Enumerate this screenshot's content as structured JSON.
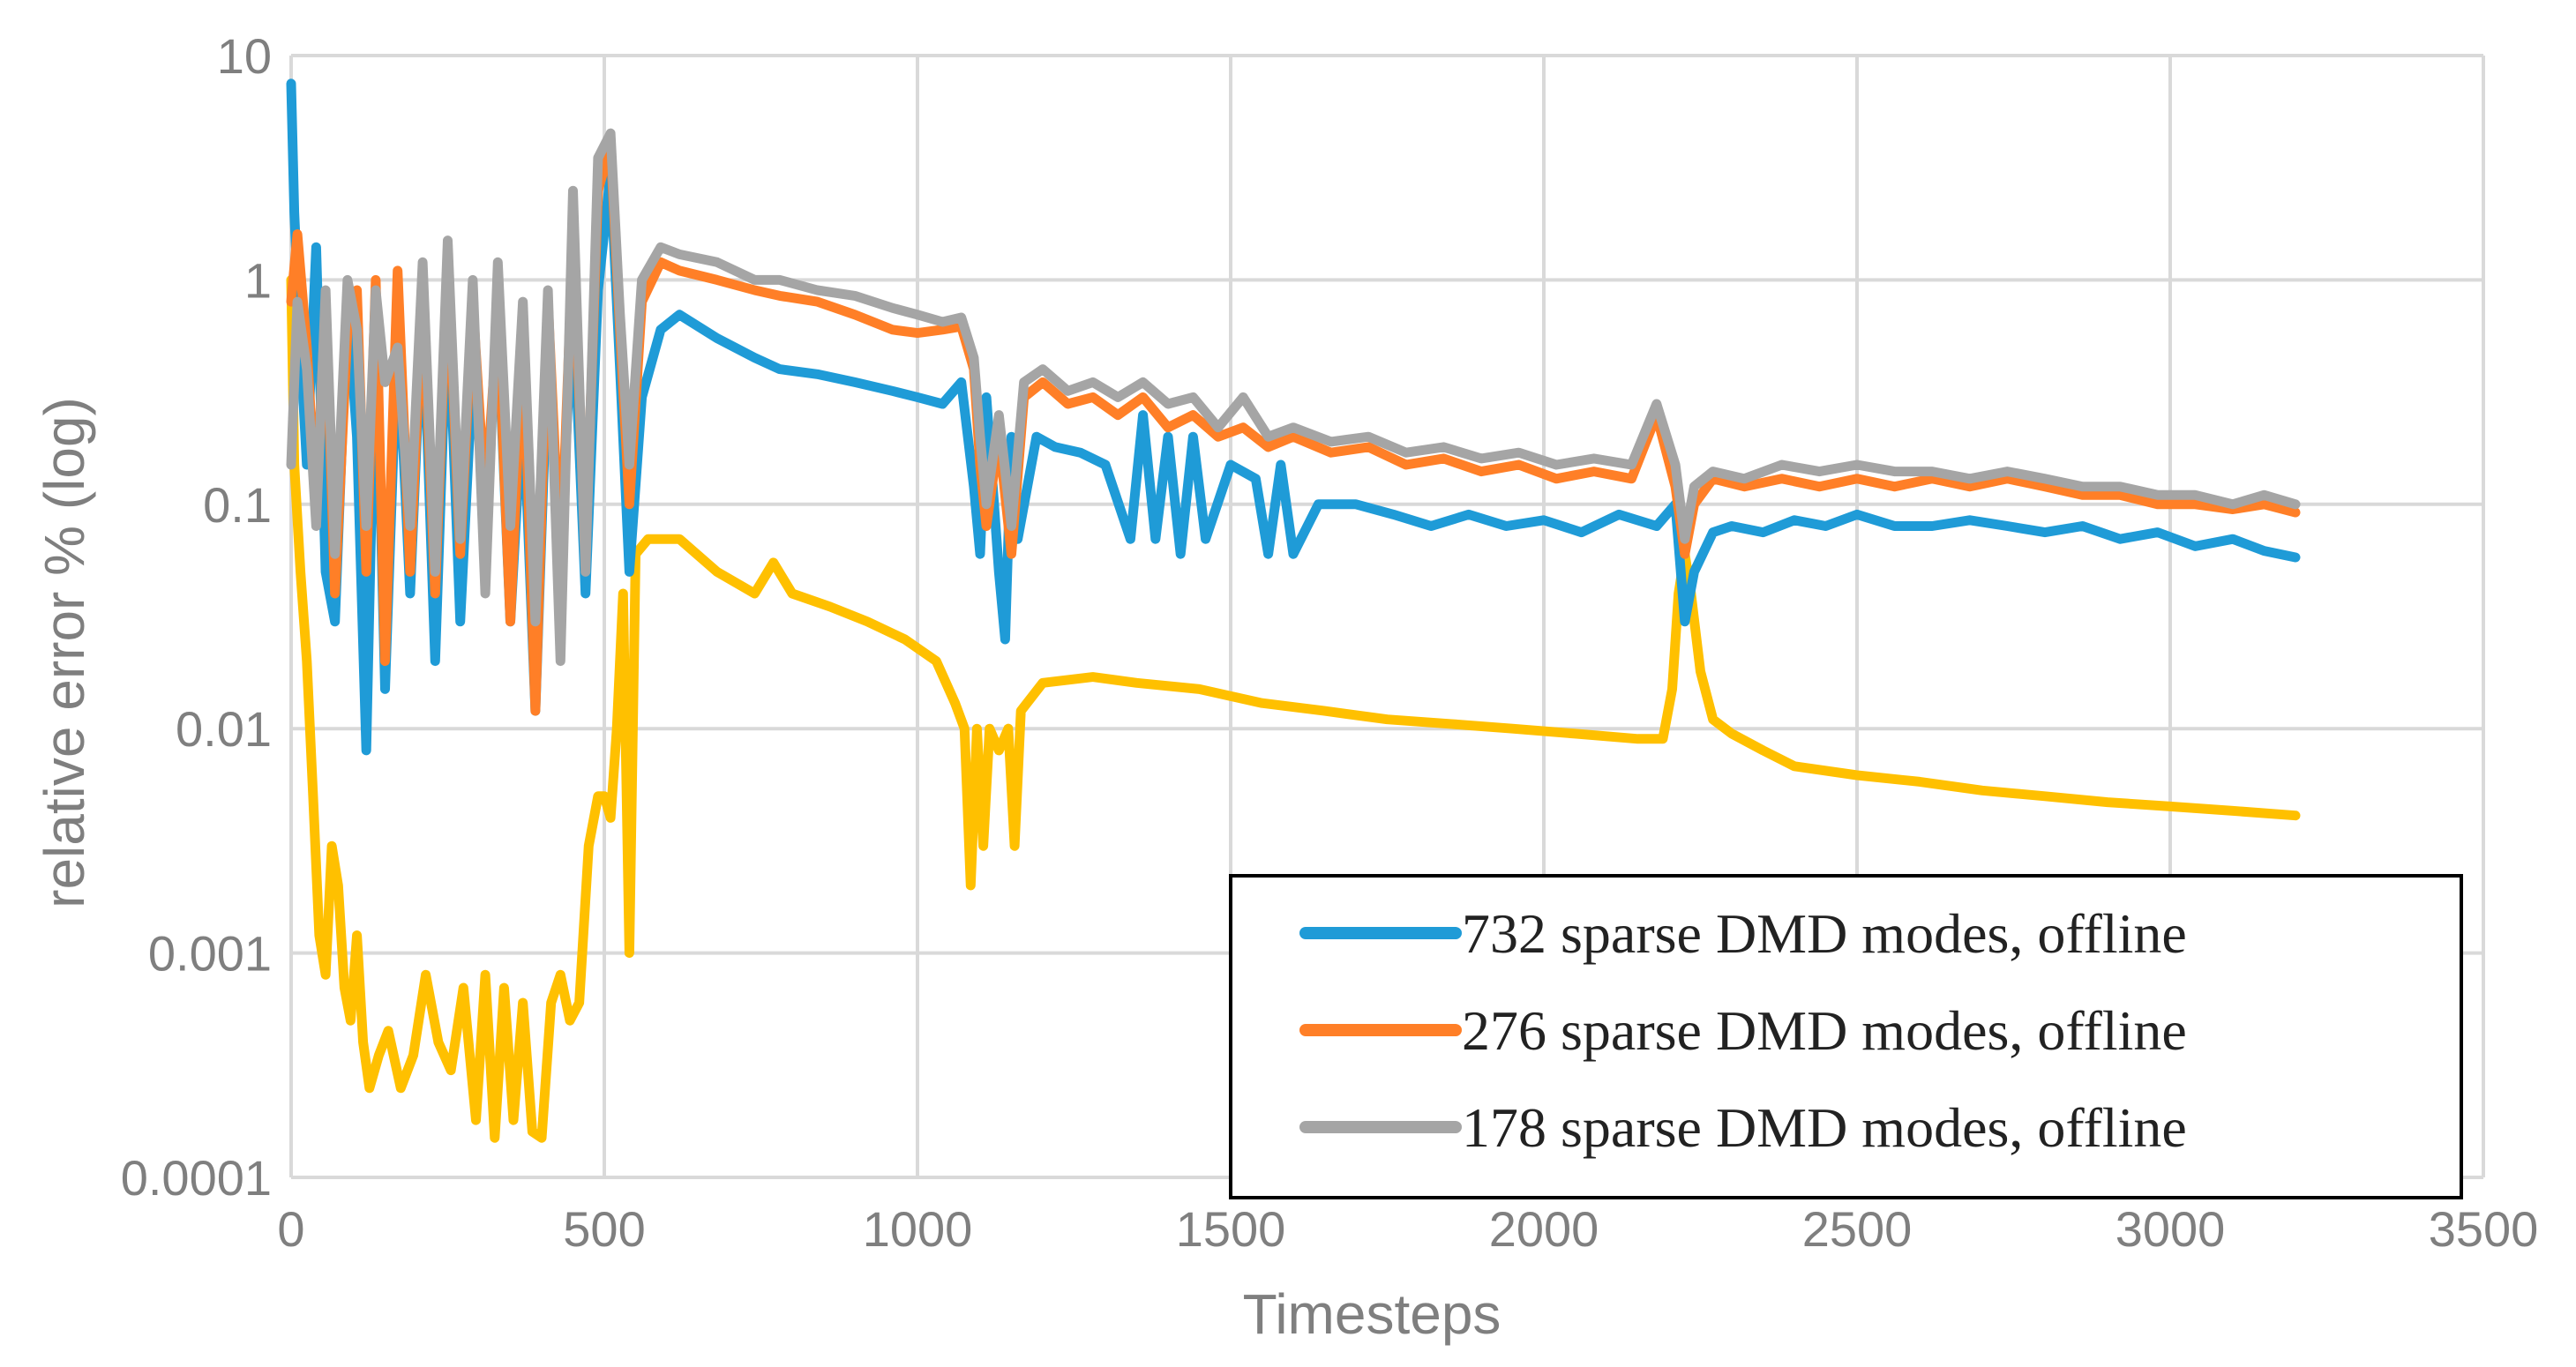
{
  "chart_data": {
    "type": "line",
    "title": "",
    "xlabel": "Timesteps",
    "ylabel": "relative error % (log)",
    "yscale": "log",
    "xlim": [
      0,
      3500
    ],
    "ylim": [
      0.0001,
      10
    ],
    "x_ticks": [
      0,
      500,
      1000,
      1500,
      2000,
      2500,
      3000,
      3500
    ],
    "x_tick_labels": [
      "0",
      "500",
      "1000",
      "1500",
      "2000",
      "2500",
      "3000",
      "3500"
    ],
    "y_ticks": [
      0.0001,
      0.001,
      0.01,
      0.1,
      1,
      10
    ],
    "y_tick_labels": [
      "0.0001",
      "0.001",
      "0.01",
      "0.1",
      "1",
      "10"
    ],
    "grid": true,
    "legend_position": "bottom-right",
    "series": [
      {
        "name": "732 sparse DMD modes, offline",
        "color": "#1F9BD7",
        "in_legend": true,
        "x": [
          0,
          5,
          15,
          25,
          40,
          55,
          70,
          90,
          105,
          120,
          135,
          150,
          170,
          190,
          210,
          230,
          250,
          270,
          290,
          310,
          330,
          350,
          370,
          390,
          410,
          430,
          450,
          470,
          490,
          510,
          525,
          540,
          560,
          590,
          620,
          680,
          740,
          780,
          840,
          900,
          960,
          1000,
          1040,
          1070,
          1090,
          1100,
          1110,
          1130,
          1140,
          1150,
          1160,
          1190,
          1220,
          1260,
          1300,
          1340,
          1360,
          1380,
          1400,
          1420,
          1440,
          1460,
          1500,
          1540,
          1560,
          1580,
          1600,
          1640,
          1700,
          1760,
          1820,
          1880,
          1940,
          2000,
          2060,
          2120,
          2180,
          2210,
          2225,
          2240,
          2270,
          2300,
          2350,
          2400,
          2450,
          2500,
          2560,
          2620,
          2680,
          2740,
          2800,
          2860,
          2920,
          2980,
          3040,
          3100,
          3150,
          3200
        ],
        "y": [
          7.5,
          2.0,
          0.5,
          0.15,
          1.4,
          0.05,
          0.03,
          0.8,
          0.2,
          0.008,
          0.7,
          0.015,
          0.6,
          0.04,
          0.8,
          0.02,
          0.9,
          0.03,
          0.4,
          0.1,
          0.6,
          0.03,
          0.3,
          0.012,
          0.5,
          0.06,
          0.8,
          0.04,
          0.9,
          3.0,
          0.4,
          0.05,
          0.3,
          0.6,
          0.7,
          0.55,
          0.45,
          0.4,
          0.38,
          0.35,
          0.32,
          0.3,
          0.28,
          0.35,
          0.12,
          0.06,
          0.3,
          0.05,
          0.025,
          0.2,
          0.07,
          0.2,
          0.18,
          0.17,
          0.15,
          0.07,
          0.25,
          0.07,
          0.2,
          0.06,
          0.2,
          0.07,
          0.15,
          0.13,
          0.06,
          0.15,
          0.06,
          0.1,
          0.1,
          0.09,
          0.08,
          0.09,
          0.08,
          0.085,
          0.075,
          0.09,
          0.08,
          0.1,
          0.03,
          0.05,
          0.075,
          0.08,
          0.075,
          0.085,
          0.08,
          0.09,
          0.08,
          0.08,
          0.085,
          0.08,
          0.075,
          0.08,
          0.07,
          0.075,
          0.065,
          0.07,
          0.062,
          0.058
        ]
      },
      {
        "name": "276 sparse DMD modes, offline",
        "color": "#FF7F27",
        "in_legend": true,
        "x": [
          0,
          10,
          25,
          40,
          55,
          70,
          90,
          105,
          120,
          135,
          150,
          170,
          190,
          210,
          230,
          250,
          270,
          290,
          310,
          330,
          350,
          370,
          390,
          410,
          430,
          450,
          470,
          490,
          510,
          525,
          540,
          560,
          590,
          620,
          680,
          740,
          780,
          840,
          900,
          960,
          1000,
          1040,
          1070,
          1090,
          1100,
          1110,
          1130,
          1150,
          1170,
          1200,
          1240,
          1280,
          1320,
          1360,
          1400,
          1440,
          1480,
          1520,
          1560,
          1600,
          1660,
          1720,
          1780,
          1840,
          1900,
          1960,
          2020,
          2080,
          2140,
          2180,
          2210,
          2225,
          2240,
          2270,
          2320,
          2380,
          2440,
          2500,
          2560,
          2620,
          2680,
          2740,
          2800,
          2860,
          2920,
          2980,
          3040,
          3100,
          3150,
          3200
        ],
        "y": [
          0.8,
          1.6,
          0.5,
          0.1,
          0.8,
          0.04,
          0.6,
          0.9,
          0.05,
          1.0,
          0.02,
          1.1,
          0.05,
          0.9,
          0.04,
          1.2,
          0.06,
          0.8,
          0.1,
          0.7,
          0.03,
          0.6,
          0.012,
          0.8,
          0.05,
          1.5,
          0.06,
          2.5,
          4.0,
          0.6,
          0.1,
          0.8,
          1.2,
          1.1,
          1.0,
          0.9,
          0.85,
          0.8,
          0.7,
          0.6,
          0.58,
          0.6,
          0.62,
          0.4,
          0.15,
          0.08,
          0.2,
          0.06,
          0.3,
          0.35,
          0.28,
          0.3,
          0.25,
          0.3,
          0.22,
          0.25,
          0.2,
          0.22,
          0.18,
          0.2,
          0.17,
          0.18,
          0.15,
          0.16,
          0.14,
          0.15,
          0.13,
          0.14,
          0.13,
          0.25,
          0.12,
          0.06,
          0.1,
          0.13,
          0.12,
          0.13,
          0.12,
          0.13,
          0.12,
          0.13,
          0.12,
          0.13,
          0.12,
          0.11,
          0.11,
          0.1,
          0.1,
          0.095,
          0.1,
          0.092
        ]
      },
      {
        "name": "178 sparse DMD modes, offline",
        "color": "#A5A5A5",
        "in_legend": true,
        "x": [
          0,
          10,
          25,
          40,
          55,
          70,
          90,
          105,
          120,
          135,
          150,
          170,
          190,
          210,
          230,
          250,
          270,
          290,
          310,
          330,
          350,
          370,
          390,
          410,
          430,
          450,
          470,
          490,
          510,
          525,
          540,
          560,
          590,
          620,
          680,
          740,
          780,
          840,
          900,
          960,
          1000,
          1040,
          1070,
          1090,
          1100,
          1110,
          1130,
          1150,
          1170,
          1200,
          1240,
          1280,
          1320,
          1360,
          1400,
          1440,
          1480,
          1520,
          1560,
          1600,
          1660,
          1720,
          1780,
          1840,
          1900,
          1960,
          2020,
          2080,
          2140,
          2180,
          2210,
          2225,
          2240,
          2270,
          2320,
          2380,
          2440,
          2500,
          2560,
          2620,
          2680,
          2740,
          2800,
          2860,
          2920,
          2980,
          3040,
          3100,
          3150,
          3200
        ],
        "y": [
          0.15,
          0.8,
          0.4,
          0.08,
          0.9,
          0.06,
          1.0,
          0.6,
          0.08,
          0.9,
          0.35,
          0.5,
          0.08,
          1.2,
          0.05,
          1.5,
          0.07,
          1.0,
          0.04,
          1.2,
          0.08,
          0.8,
          0.03,
          0.9,
          0.02,
          2.5,
          0.05,
          3.5,
          4.5,
          0.7,
          0.15,
          1.0,
          1.4,
          1.3,
          1.2,
          1.0,
          1.0,
          0.9,
          0.85,
          0.75,
          0.7,
          0.65,
          0.68,
          0.45,
          0.2,
          0.1,
          0.25,
          0.08,
          0.35,
          0.4,
          0.32,
          0.35,
          0.3,
          0.35,
          0.28,
          0.3,
          0.22,
          0.3,
          0.2,
          0.22,
          0.19,
          0.2,
          0.17,
          0.18,
          0.16,
          0.17,
          0.15,
          0.16,
          0.15,
          0.28,
          0.15,
          0.07,
          0.12,
          0.14,
          0.13,
          0.15,
          0.14,
          0.15,
          0.14,
          0.14,
          0.13,
          0.14,
          0.13,
          0.12,
          0.12,
          0.11,
          0.11,
          0.1,
          0.11,
          0.1
        ]
      },
      {
        "name": "",
        "color": "#FFC000",
        "in_legend": false,
        "x": [
          0,
          5,
          15,
          25,
          35,
          45,
          55,
          65,
          75,
          85,
          95,
          105,
          115,
          125,
          140,
          155,
          175,
          195,
          215,
          235,
          255,
          275,
          295,
          310,
          325,
          340,
          355,
          370,
          385,
          400,
          415,
          430,
          445,
          460,
          475,
          490,
          500,
          510,
          520,
          530,
          540,
          550,
          570,
          620,
          680,
          740,
          770,
          800,
          860,
          920,
          980,
          1030,
          1060,
          1075,
          1085,
          1095,
          1105,
          1115,
          1130,
          1145,
          1155,
          1165,
          1200,
          1280,
          1350,
          1450,
          1550,
          1650,
          1750,
          1850,
          1950,
          2050,
          2150,
          2190,
          2205,
          2215,
          2225,
          2235,
          2250,
          2270,
          2300,
          2350,
          2400,
          2500,
          2600,
          2700,
          2800,
          2900,
          3000,
          3100,
          3200
        ],
        "y": [
          1.0,
          0.15,
          0.05,
          0.02,
          0.005,
          0.0012,
          0.0008,
          0.003,
          0.002,
          0.0007,
          0.0005,
          0.0012,
          0.0004,
          0.00025,
          0.00035,
          0.00045,
          0.00025,
          0.00035,
          0.0008,
          0.0004,
          0.0003,
          0.0007,
          0.00018,
          0.0008,
          0.00015,
          0.0007,
          0.00018,
          0.0006,
          0.00016,
          0.00015,
          0.0006,
          0.0008,
          0.0005,
          0.0006,
          0.003,
          0.005,
          0.005,
          0.004,
          0.01,
          0.04,
          0.001,
          0.06,
          0.07,
          0.07,
          0.05,
          0.04,
          0.055,
          0.04,
          0.035,
          0.03,
          0.025,
          0.02,
          0.013,
          0.01,
          0.002,
          0.01,
          0.003,
          0.01,
          0.008,
          0.01,
          0.003,
          0.012,
          0.016,
          0.017,
          0.016,
          0.015,
          0.013,
          0.012,
          0.011,
          0.0105,
          0.01,
          0.0095,
          0.009,
          0.009,
          0.015,
          0.04,
          0.06,
          0.04,
          0.018,
          0.011,
          0.0095,
          0.008,
          0.0068,
          0.0062,
          0.0058,
          0.0053,
          0.005,
          0.0047,
          0.0045,
          0.0043,
          0.0041
        ]
      }
    ]
  }
}
